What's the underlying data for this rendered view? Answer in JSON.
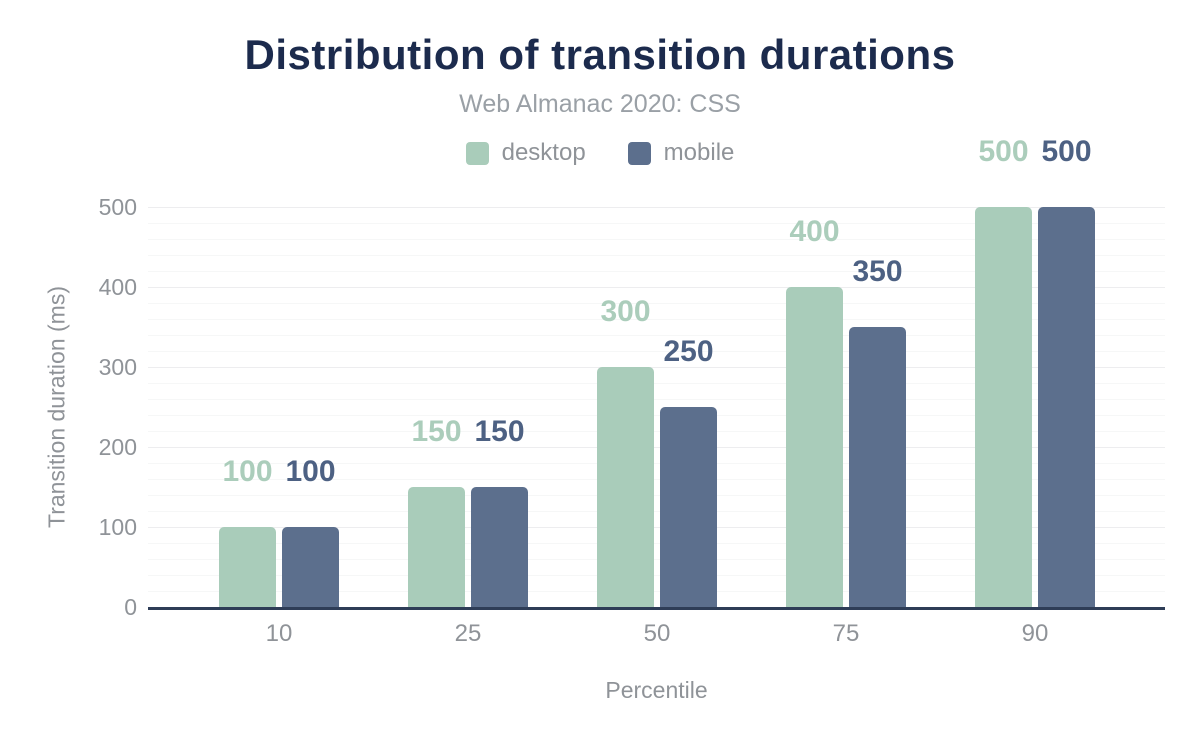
{
  "title": "Distribution of transition durations",
  "subtitle": "Web Almanac 2020: CSS",
  "x_axis_title": "Percentile",
  "y_axis_title": "Transition duration (ms)",
  "colors": {
    "title": "#1c2b4d",
    "subtitle": "#9aa0a6",
    "axis_text": "#8f9398",
    "axis_line": "#2e3d57",
    "desktop": "#a9ccba",
    "mobile": "#5c6f8d",
    "desktop_label": "#abcdbb",
    "mobile_label": "#4d6183",
    "grid_minor": "#f6f7f7",
    "grid_major": "#ededef",
    "background": "#ffffff"
  },
  "chart_data": {
    "type": "bar",
    "title": "Distribution of transition durations",
    "subtitle": "Web Almanac 2020: CSS",
    "xlabel": "Percentile",
    "ylabel": "Transition duration (ms)",
    "categories": [
      "10",
      "25",
      "50",
      "75",
      "90"
    ],
    "series": [
      {
        "name": "desktop",
        "color": "#a9ccba",
        "label_color": "#abcdbb",
        "values": [
          100,
          150,
          300,
          400,
          500
        ]
      },
      {
        "name": "mobile",
        "color": "#5c6f8d",
        "label_color": "#4d6183",
        "values": [
          100,
          150,
          250,
          350,
          500
        ]
      }
    ],
    "ylim": [
      0,
      500
    ],
    "yticks": [
      0,
      100,
      200,
      300,
      400,
      500
    ],
    "grid": "horizontal, minor every 20, major every 100",
    "legend_position": "top center",
    "bar_value_labels": true
  }
}
